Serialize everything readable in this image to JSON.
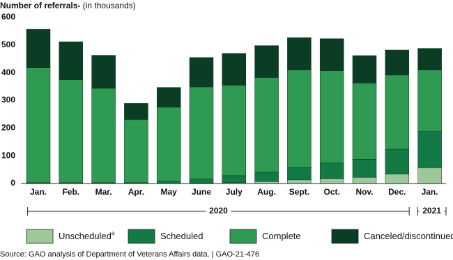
{
  "chart_data": {
    "type": "stacked_bar",
    "title": "Number of referrals-",
    "subtitle": "(in thousands)",
    "categories": [
      "Jan.",
      "Feb.",
      "Mar.",
      "Apr.",
      "May",
      "June",
      "July",
      "Aug.",
      "Sept.",
      "Oct.",
      "Nov.",
      "Dec.",
      "Jan."
    ],
    "year_groups": [
      {
        "label": "2020",
        "count": 12
      },
      {
        "label": "2021",
        "count": 1
      }
    ],
    "series": [
      {
        "name": "Unscheduled",
        "note": "a",
        "color": "#9dc89a",
        "values": [
          1,
          1,
          1,
          1,
          1,
          2,
          3,
          7,
          13,
          18,
          22,
          35,
          57
        ]
      },
      {
        "name": "Scheduled",
        "color": "#137a45",
        "values": [
          2,
          2,
          2,
          2,
          7,
          15,
          25,
          35,
          45,
          57,
          65,
          90,
          131
        ]
      },
      {
        "name": "Complete",
        "color": "#2e9a52",
        "values": [
          415,
          372,
          341,
          228,
          268,
          332,
          327,
          341,
          352,
          333,
          276,
          267,
          222
        ]
      },
      {
        "name": "Canceled/discontinued",
        "color": "#0b3d24",
        "values": [
          139,
          137,
          119,
          59,
          71,
          106,
          115,
          115,
          117,
          115,
          99,
          90,
          78
        ]
      }
    ],
    "ylim": [
      0,
      600
    ],
    "yticks": [
      0,
      100,
      200,
      300,
      400,
      500,
      600
    ],
    "grid": false,
    "source": "Source: GAO analysis of Department of Veterans Affairs data.  |  GAO-21-476"
  }
}
